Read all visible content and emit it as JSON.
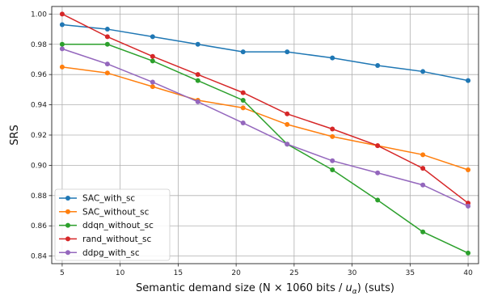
{
  "chart_data": {
    "type": "line",
    "title": "",
    "xlabel": "Semantic demand size (N × 1060 bits / ",
    "xlabel_sub_var": "u",
    "xlabel_sub": "α",
    "xlabel_tail": ") (suts)",
    "ylabel": "SRS",
    "xlim": [
      4.1,
      40.9
    ],
    "ylim": [
      0.835,
      1.005
    ],
    "xticks": [
      5,
      10,
      15,
      20,
      25,
      30,
      35,
      40
    ],
    "yticks": [
      0.84,
      0.86,
      0.88,
      0.9,
      0.92,
      0.94,
      0.96,
      0.98,
      1.0
    ],
    "ytick_labels": [
      "0.84",
      "0.86",
      "0.88",
      "0.90",
      "0.92",
      "0.94",
      "0.96",
      "0.98",
      "1.00"
    ],
    "grid": true,
    "legend_position": "lower-left",
    "x": [
      5,
      8.9,
      12.8,
      16.7,
      20.6,
      24.4,
      28.3,
      32.2,
      36.1,
      40
    ],
    "series": [
      {
        "name": "SAC_with_sc",
        "color": "#1f77b4",
        "values": [
          0.993,
          0.99,
          0.985,
          0.98,
          0.975,
          0.975,
          0.971,
          0.966,
          0.962,
          0.956
        ]
      },
      {
        "name": "SAC_without_sc",
        "color": "#ff7f0e",
        "values": [
          0.965,
          0.961,
          0.952,
          0.943,
          0.938,
          0.927,
          0.919,
          0.913,
          0.907,
          0.897
        ]
      },
      {
        "name": "ddqn_without_sc",
        "color": "#2ca02c",
        "values": [
          0.98,
          0.98,
          0.969,
          0.956,
          0.943,
          0.914,
          0.897,
          0.877,
          0.856,
          0.842
        ]
      },
      {
        "name": "rand_without_sc",
        "color": "#d62728",
        "values": [
          1.0,
          0.985,
          0.972,
          0.96,
          0.948,
          0.934,
          0.924,
          0.913,
          0.898,
          0.875
        ]
      },
      {
        "name": "ddpg_with_sc",
        "color": "#9467bd",
        "values": [
          0.977,
          0.967,
          0.955,
          0.942,
          0.928,
          0.914,
          0.903,
          0.895,
          0.887,
          0.873
        ]
      }
    ]
  }
}
